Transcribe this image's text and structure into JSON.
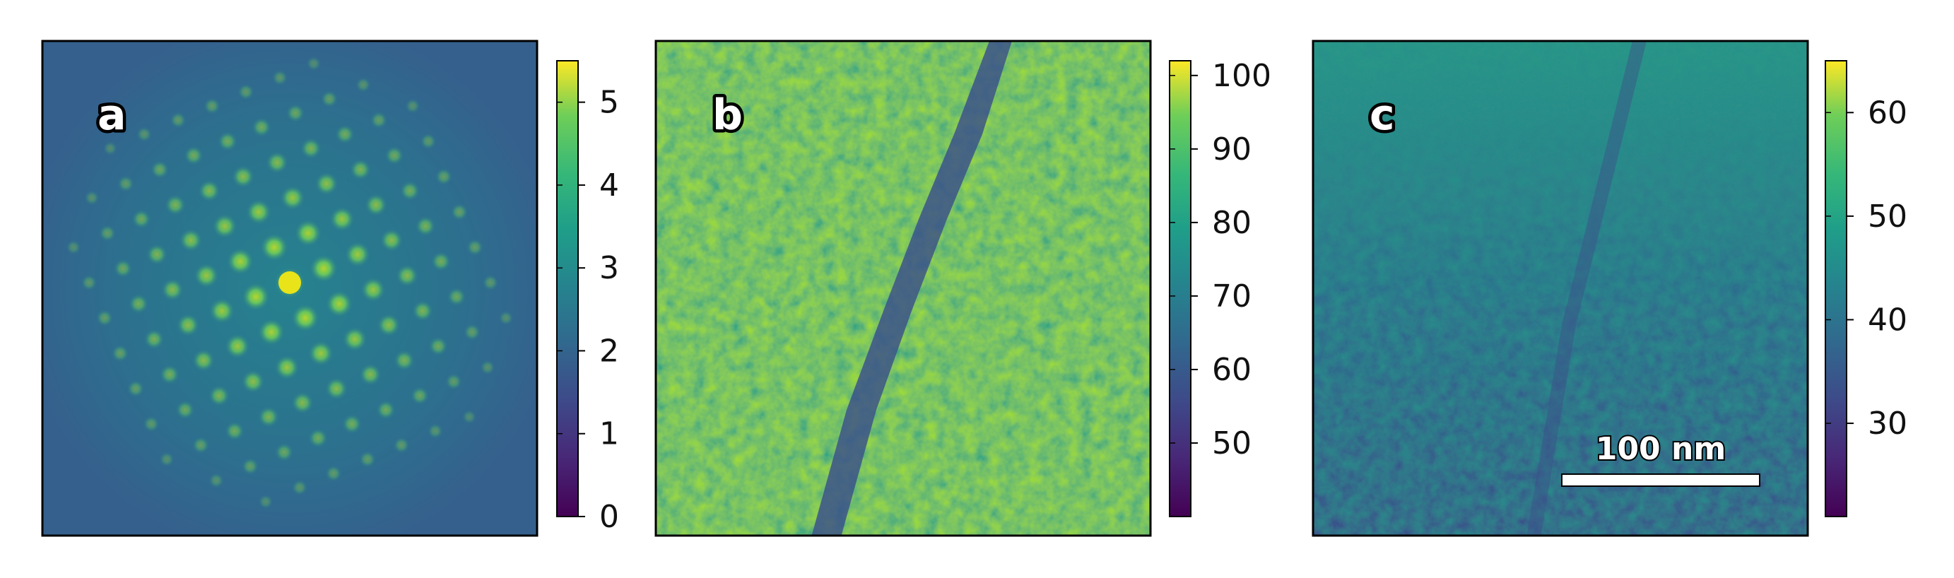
{
  "figure": {
    "panels": [
      {
        "id": "a",
        "label": "a",
        "content": "diffraction pattern",
        "colorbar": {
          "min": 0,
          "max": 5.5,
          "ticks": [
            "0",
            "1",
            "2",
            "3",
            "4",
            "5"
          ]
        }
      },
      {
        "id": "b",
        "label": "b",
        "content": "real-space map with diagonal dark line",
        "colorbar": {
          "min": 40,
          "max": 102,
          "ticks": [
            "50",
            "60",
            "70",
            "80",
            "90",
            "100"
          ]
        }
      },
      {
        "id": "c",
        "label": "c",
        "content": "real-space map",
        "colorbar": {
          "min": 21,
          "max": 65,
          "ticks": [
            "30",
            "40",
            "50",
            "60"
          ]
        },
        "scale_bar": {
          "text": "100 nm"
        }
      }
    ],
    "colormap": "viridis",
    "colors": {
      "viridis_low": "#440154",
      "viridis_mid": "#21918c",
      "viridis_high": "#fde725",
      "frame": "#000000"
    }
  }
}
